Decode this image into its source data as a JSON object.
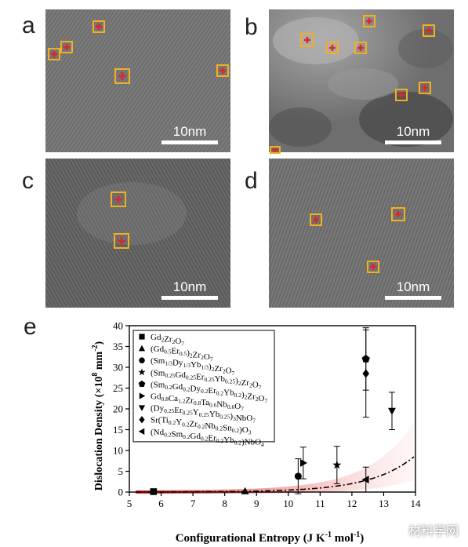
{
  "panels": {
    "a": {
      "letter": "a",
      "scale": "10nm"
    },
    "b": {
      "letter": "b",
      "scale": "10nm"
    },
    "c": {
      "letter": "c",
      "scale": "10nm"
    },
    "d": {
      "letter": "d",
      "scale": "10nm"
    },
    "e": {
      "letter": "e"
    }
  },
  "colors": {
    "box": "#f2b01e",
    "dislocation": "#e0262b"
  },
  "watermark": "材料学网",
  "chart_data": {
    "type": "scatter",
    "xlabel": "Configurational Entropy  (J  K",
    "xlabel_sup": "-1",
    "xlabel_tail": " mol",
    "xlabel_sup2": "-1",
    "xlabel_end": ")",
    "ylabel": "Dislocation Density (×10",
    "ylabel_sup": "8",
    "ylabel_mid": " mm",
    "ylabel_sup2": "-2",
    "ylabel_end": ")",
    "xlim": [
      5,
      14
    ],
    "ylim": [
      0,
      40
    ],
    "xticks": [
      "5",
      "6",
      "7",
      "8",
      "9",
      "10",
      "11",
      "12",
      "13",
      "14"
    ],
    "yticks": [
      "0",
      "5",
      "10",
      "15",
      "20",
      "25",
      "30",
      "35",
      "40"
    ],
    "series": [
      {
        "name": "Gd2Zr2O7",
        "marker": "square",
        "x": 5.76,
        "y": 0.1,
        "err": 0
      },
      {
        "name": "(Gd0.5Er0.5)2Zr2O7",
        "marker": "triangle-up",
        "x": 8.64,
        "y": 0.2,
        "err": 0
      },
      {
        "name": "(Sm1/3Dy1/3Yb1/3)2Zr2O7",
        "marker": "circle",
        "x": 10.31,
        "y": 3.8,
        "err": 4.2
      },
      {
        "name": "(Sm0.25Gd0.25Er0.25Yb0.25)2Zr2O7",
        "marker": "star",
        "x": 11.53,
        "y": 6.5,
        "err": 4.5
      },
      {
        "name": "(Sm0.2Gd0.2Dy0.2Er0.2Yb0.2)2Zr2O7",
        "marker": "pentagon",
        "x": 12.44,
        "y": 32.0,
        "err": 7.5
      },
      {
        "name": "Gd0.8Ca1.2Zr0.8Ta0.6Nb0.6O7",
        "marker": "triangle-right",
        "x": 10.47,
        "y": 7.0,
        "err": 3.8
      },
      {
        "name": "(Dy0.25Er0.25Y0.25Yb0.25)3NbO7",
        "marker": "triangle-down",
        "x": 13.26,
        "y": 19.5,
        "err": 4.5
      },
      {
        "name": "Sr(Ti0.2Y0.2Zr0.2Nb0.2Sn0.2)O3",
        "marker": "diamond",
        "x": 12.44,
        "y": 28.5,
        "err": 10.5
      },
      {
        "name": "(Nd0.2Sm0.2Gd0.2Er0.2Yb0.2)NbO4",
        "marker": "triangle-left",
        "x": 12.44,
        "y": 3.0,
        "err": 3.0
      }
    ],
    "legend": [
      [
        "Gd",
        {
          "sub": "2"
        },
        "Zr",
        {
          "sub": "2"
        },
        "O",
        {
          "sub": "7"
        }
      ],
      [
        "(Gd",
        {
          "sub": "0.5"
        },
        "Er",
        {
          "sub": "0.5"
        },
        ")",
        {
          "sub": "2"
        },
        "Zr",
        {
          "sub": "2"
        },
        "O",
        {
          "sub": "7"
        }
      ],
      [
        "(Sm",
        {
          "sub": "1/3"
        },
        "Dy",
        {
          "sub": "1/3"
        },
        "Yb",
        {
          "sub": "1/3"
        },
        ")",
        {
          "sub": "2"
        },
        "Zr",
        {
          "sub": "2"
        },
        "O",
        {
          "sub": "7"
        }
      ],
      [
        "(Sm",
        {
          "sub": "0.25"
        },
        "Gd",
        {
          "sub": "0.25"
        },
        "Er",
        {
          "sub": "0.25"
        },
        "Yb",
        {
          "sub": "0.25"
        },
        ")",
        {
          "sub": "2"
        },
        "Zr",
        {
          "sub": "2"
        },
        "O",
        {
          "sub": "7"
        }
      ],
      [
        "(Sm",
        {
          "sub": "0.2"
        },
        "Gd",
        {
          "sub": "0.2"
        },
        "Dy",
        {
          "sub": "0.2"
        },
        "Er",
        {
          "sub": "0.2"
        },
        "Yb",
        {
          "sub": "0.2"
        },
        ")",
        {
          "sub": "2"
        },
        "Zr",
        {
          "sub": "2"
        },
        "O",
        {
          "sub": "7"
        }
      ],
      [
        "Gd",
        {
          "sub": "0.8"
        },
        "Ca",
        {
          "sub": "1.2"
        },
        "Zr",
        {
          "sub": "0.8"
        },
        "Ta",
        {
          "sub": "0.6"
        },
        "Nb",
        {
          "sub": "0.6"
        },
        "O",
        {
          "sub": "7"
        }
      ],
      [
        "(Dy",
        {
          "sub": "0.25"
        },
        "Er",
        {
          "sub": "0.25"
        },
        "Y",
        {
          "sub": "0.25"
        },
        "Yb",
        {
          "sub": "0.25"
        },
        ")",
        {
          "sub": "3"
        },
        "NbO",
        {
          "sub": "7"
        }
      ],
      [
        "Sr(Ti",
        {
          "sub": "0.2"
        },
        "Y",
        {
          "sub": "0.2"
        },
        "Zr",
        {
          "sub": "0.2"
        },
        "Nb",
        {
          "sub": "0.2"
        },
        "Sn",
        {
          "sub": "0.2"
        },
        ")O",
        {
          "sub": "3"
        }
      ],
      [
        "(Nd",
        {
          "sub": "0.2"
        },
        "Sm",
        {
          "sub": "0.2"
        },
        "Gd",
        {
          "sub": "0.2"
        },
        "Er",
        {
          "sub": "0.2"
        },
        "Yb",
        {
          "sub": "0.2"
        },
        ")NbO",
        {
          "sub": "4"
        }
      ]
    ],
    "fit_curve": {
      "style": "dash-dot",
      "a": 0.00032,
      "b": 0.73,
      "x0": 5.2,
      "x1": 13.95
    },
    "band_color": "#f08080"
  }
}
